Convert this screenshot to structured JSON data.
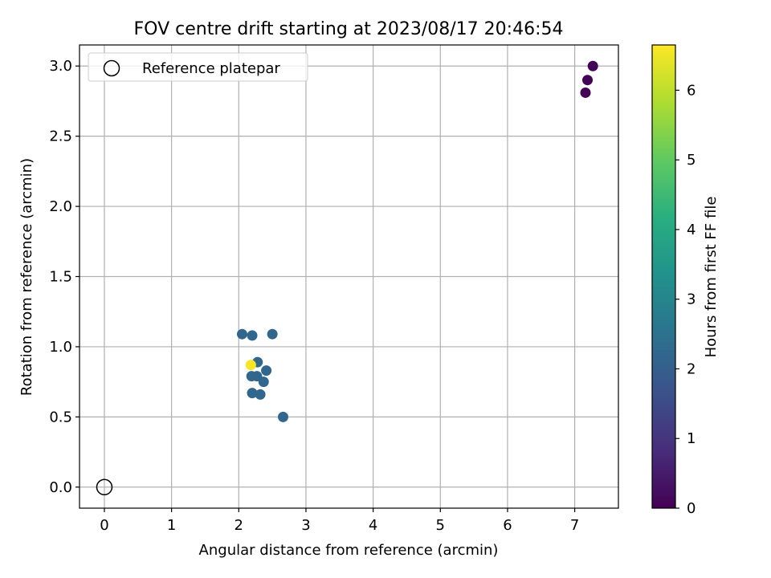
{
  "chart_data": {
    "type": "scatter",
    "title": "FOV centre drift starting at 2023/08/17 20:46:54",
    "xlabel": "Angular distance from reference (arcmin)",
    "ylabel": "Rotation from reference (arcmin)",
    "xlim": [
      -0.37,
      7.65
    ],
    "ylim": [
      -0.15,
      3.15
    ],
    "x_ticks": [
      "0",
      "1",
      "2",
      "3",
      "4",
      "5",
      "6",
      "7"
    ],
    "y_ticks": [
      "0.0",
      "0.5",
      "1.0",
      "1.5",
      "2.0",
      "2.5",
      "3.0"
    ],
    "grid": true,
    "legend": {
      "placement": "top-left",
      "entries": [
        "Reference platepar"
      ]
    },
    "reference_point": {
      "x": 0,
      "y": 0,
      "label": "Reference platepar"
    },
    "colorbar": {
      "label": "Hours from first FF file",
      "range": [
        0,
        6.65
      ],
      "ticks": [
        "0",
        "1",
        "2",
        "3",
        "4",
        "5",
        "6"
      ],
      "colormap": "viridis"
    },
    "points": [
      {
        "x": 7.27,
        "y": 3.0,
        "hours": 0.05
      },
      {
        "x": 7.19,
        "y": 2.9,
        "hours": 0.05
      },
      {
        "x": 7.16,
        "y": 2.81,
        "hours": 0.05
      },
      {
        "x": 2.05,
        "y": 1.09,
        "hours": 2.2
      },
      {
        "x": 2.2,
        "y": 1.08,
        "hours": 2.2
      },
      {
        "x": 2.5,
        "y": 1.09,
        "hours": 2.2
      },
      {
        "x": 2.28,
        "y": 0.89,
        "hours": 2.2
      },
      {
        "x": 2.41,
        "y": 0.83,
        "hours": 2.2
      },
      {
        "x": 2.19,
        "y": 0.79,
        "hours": 2.2
      },
      {
        "x": 2.27,
        "y": 0.79,
        "hours": 2.2
      },
      {
        "x": 2.37,
        "y": 0.75,
        "hours": 2.2
      },
      {
        "x": 2.2,
        "y": 0.67,
        "hours": 2.2
      },
      {
        "x": 2.32,
        "y": 0.66,
        "hours": 2.2
      },
      {
        "x": 2.66,
        "y": 0.5,
        "hours": 2.2
      },
      {
        "x": 2.18,
        "y": 0.87,
        "hours": 6.6
      }
    ]
  }
}
